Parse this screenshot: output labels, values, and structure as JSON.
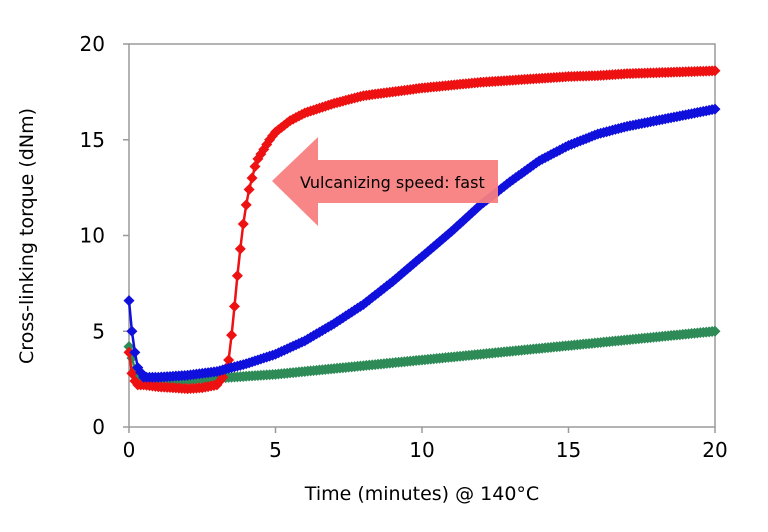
{
  "chart_data": {
    "type": "scatter",
    "title": "",
    "xlabel": "Time (minutes) @ 140°C",
    "ylabel": "Cross-linking torque (dNm)",
    "xlim": [
      0,
      20
    ],
    "ylim": [
      0,
      20
    ],
    "xticks": [
      0,
      5,
      10,
      15,
      20
    ],
    "yticks": [
      0,
      5,
      10,
      15,
      20
    ],
    "grid": false,
    "legend": "none",
    "annotation": {
      "text": "Vulcanizing speed: fast",
      "arrow_color": "#f88080",
      "points_to": "red series"
    },
    "series": [
      {
        "color": "#ee1111",
        "marker": "diamond",
        "x": [
          0,
          0.1,
          0.2,
          0.3,
          0.5,
          1,
          1.5,
          2,
          2.5,
          3,
          3.2,
          3.4,
          3.5,
          3.6,
          3.7,
          3.8,
          3.9,
          4.0,
          4.1,
          4.2,
          4.3,
          4.4,
          4.6,
          4.8,
          5,
          5.5,
          6,
          7,
          8,
          9,
          10,
          11,
          12,
          13,
          14,
          15,
          16,
          17,
          18,
          19,
          20
        ],
        "y": [
          3.9,
          2.8,
          2.4,
          2.2,
          2.2,
          2.1,
          2.05,
          2.0,
          2.05,
          2.2,
          2.6,
          3.5,
          4.8,
          6.3,
          7.9,
          9.3,
          10.6,
          11.6,
          12.4,
          13.0,
          13.6,
          14.0,
          14.5,
          15.0,
          15.4,
          16.0,
          16.4,
          16.9,
          17.3,
          17.5,
          17.7,
          17.85,
          18.0,
          18.1,
          18.2,
          18.3,
          18.35,
          18.45,
          18.5,
          18.55,
          18.6
        ]
      },
      {
        "color": "#1010dd",
        "marker": "diamond",
        "x": [
          0,
          0.1,
          0.2,
          0.3,
          0.5,
          1,
          2,
          3,
          4,
          5,
          6,
          7,
          8,
          9,
          10,
          11,
          12,
          13,
          14,
          15,
          16,
          17,
          18,
          19,
          20
        ],
        "y": [
          6.6,
          5.0,
          3.9,
          3.1,
          2.6,
          2.6,
          2.7,
          2.9,
          3.3,
          3.8,
          4.5,
          5.4,
          6.4,
          7.6,
          8.9,
          10.2,
          11.6,
          12.8,
          13.9,
          14.7,
          15.3,
          15.7,
          16.0,
          16.3,
          16.6
        ]
      },
      {
        "color": "#2e8b57",
        "marker": "diamond",
        "x": [
          0,
          0.2,
          0.5,
          1,
          2,
          3,
          4,
          5,
          6,
          7,
          8,
          9,
          10,
          11,
          12,
          13,
          14,
          15,
          16,
          17,
          18,
          19,
          20
        ],
        "y": [
          4.2,
          3.0,
          2.4,
          2.4,
          2.45,
          2.55,
          2.65,
          2.75,
          2.9,
          3.05,
          3.2,
          3.35,
          3.5,
          3.65,
          3.8,
          3.95,
          4.1,
          4.25,
          4.4,
          4.55,
          4.7,
          4.85,
          5.0
        ]
      }
    ]
  }
}
